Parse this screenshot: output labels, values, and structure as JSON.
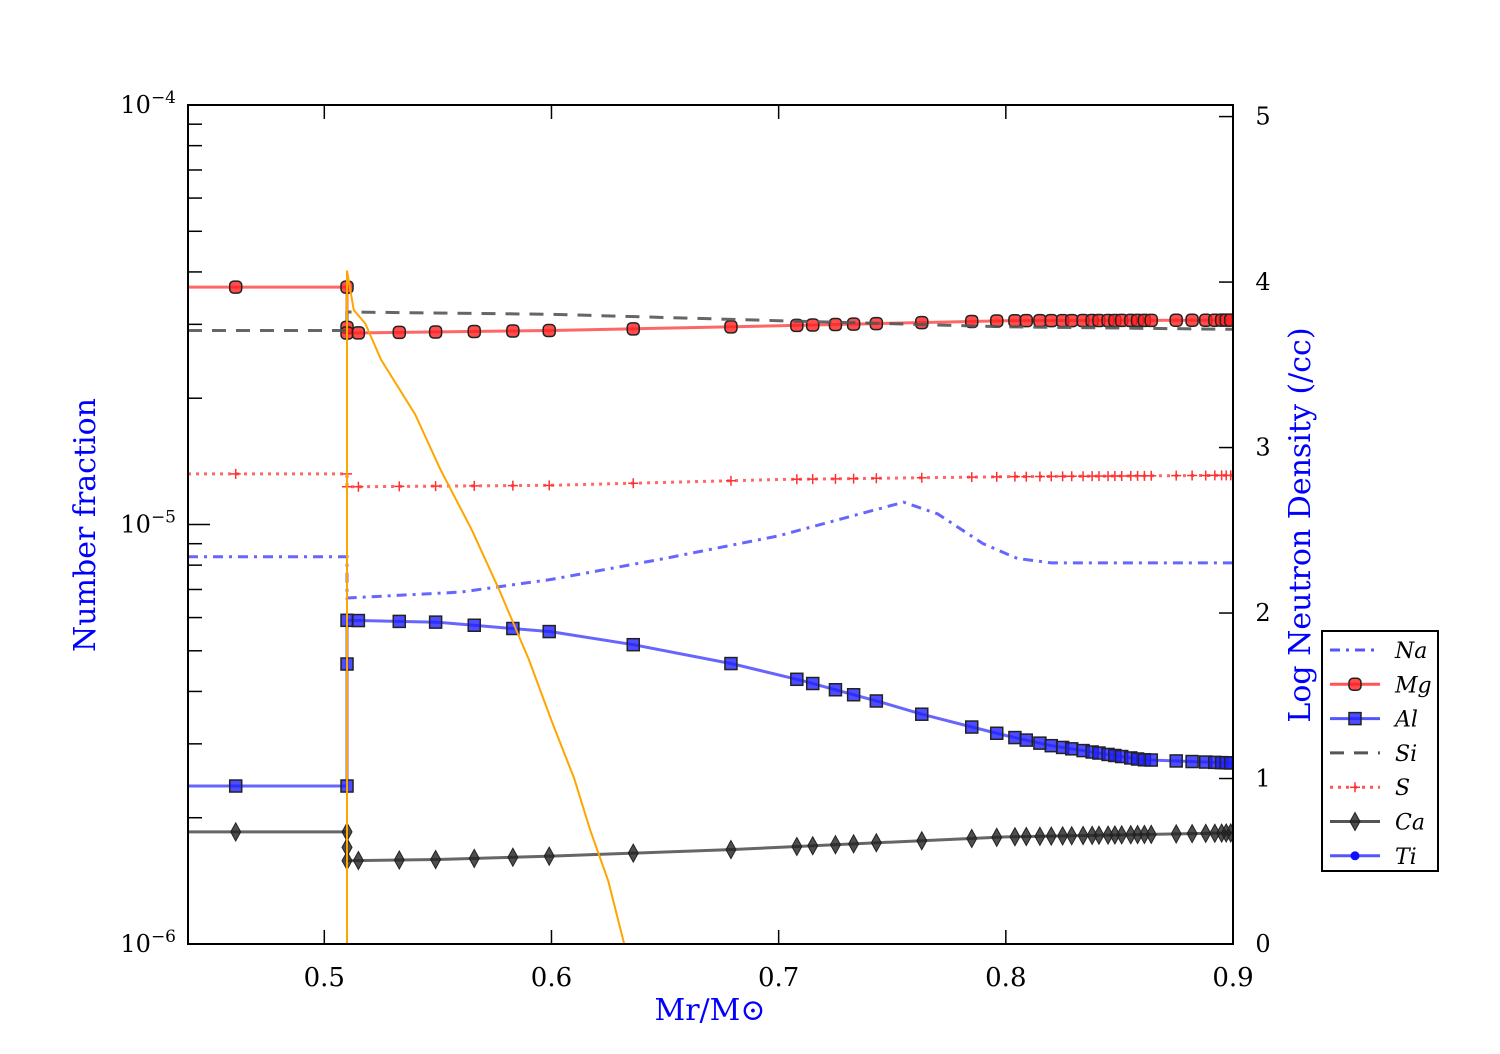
{
  "chart_data": {
    "type": "line",
    "xlabel": "Mr/M⊙",
    "ylabel": "Number fraction",
    "y2label": "Log Neutron Density (/cc)",
    "xlim": [
      0.44,
      0.9
    ],
    "ylim": [
      1e-06,
      0.0001
    ],
    "yscale": "log",
    "y2lim": [
      0,
      5.07
    ],
    "xticks": [
      0.5,
      0.6,
      0.7,
      0.8,
      0.9
    ],
    "xtick_labels": [
      "0.5",
      "0.6",
      "0.7",
      "0.8",
      "0.9"
    ],
    "yticks": [
      {
        "base": "10",
        "exp": "−4",
        "value": 0.0001
      },
      {
        "base": "10",
        "exp": "−5",
        "value": 1e-05
      },
      {
        "base": "10",
        "exp": "−6",
        "value": 1e-06
      }
    ],
    "y2ticks": [
      0,
      1,
      2,
      3,
      4,
      5
    ],
    "y2tick_labels": [
      "0",
      "1",
      "2",
      "3",
      "4",
      "5"
    ],
    "legend_position": "outside-right",
    "marker_x": [
      0.461,
      0.515,
      0.533,
      0.549,
      0.566,
      0.583,
      0.599,
      0.636,
      0.679,
      0.708,
      0.715,
      0.725,
      0.733,
      0.743,
      0.763,
      0.785,
      0.796,
      0.804,
      0.809,
      0.815,
      0.82,
      0.825,
      0.829,
      0.834,
      0.838,
      0.841,
      0.845,
      0.848,
      0.851,
      0.855,
      0.858,
      0.861,
      0.864,
      0.875,
      0.882,
      0.888,
      0.892,
      0.895,
      0.897,
      0.899
    ],
    "series": [
      {
        "name": "Na",
        "color": "#5555ff",
        "dash": "10,6,3,6",
        "marker": "none",
        "points": [
          [
            0.44,
            8.38e-06
          ],
          [
            0.51,
            8.38e-06
          ],
          [
            0.51,
            6.68e-06
          ],
          [
            0.56,
            6.9e-06
          ],
          [
            0.6,
            7.4e-06
          ],
          [
            0.65,
            8.3e-06
          ],
          [
            0.7,
            9.4e-06
          ],
          [
            0.73,
            1.04e-05
          ],
          [
            0.755,
            1.13e-05
          ],
          [
            0.77,
            1.06e-05
          ],
          [
            0.79,
            9e-06
          ],
          [
            0.805,
            8.3e-06
          ],
          [
            0.82,
            8.1e-06
          ],
          [
            0.9,
            8.1e-06
          ]
        ]
      },
      {
        "name": "Mg",
        "color": "#ff5555",
        "dash": "",
        "marker": "circle",
        "marker_fill": "#ff2020",
        "points": [
          [
            0.44,
            3.68e-05
          ],
          [
            0.51,
            3.68e-05
          ],
          [
            0.51,
            2.86e-05
          ],
          [
            0.6,
            2.9e-05
          ],
          [
            0.68,
            2.96e-05
          ],
          [
            0.74,
            3.01e-05
          ],
          [
            0.8,
            3.06e-05
          ],
          [
            0.9,
            3.07e-05
          ]
        ],
        "step_markers": [
          3.68e-05,
          2.95e-05,
          2.86e-05
        ]
      },
      {
        "name": "Al",
        "color": "#5555ff",
        "dash": "",
        "marker": "square",
        "marker_fill": "#2020ff",
        "points": [
          [
            0.44,
            2.38e-06
          ],
          [
            0.51,
            2.38e-06
          ],
          [
            0.51,
            5.91e-06
          ],
          [
            0.55,
            5.85e-06
          ],
          [
            0.6,
            5.55e-06
          ],
          [
            0.636,
            5.17e-06
          ],
          [
            0.68,
            4.65e-06
          ],
          [
            0.71,
            4.25e-06
          ],
          [
            0.745,
            3.77e-06
          ],
          [
            0.763,
            3.53e-06
          ],
          [
            0.785,
            3.29e-06
          ],
          [
            0.8,
            3.14e-06
          ],
          [
            0.82,
            2.97e-06
          ],
          [
            0.86,
            2.75e-06
          ],
          [
            0.9,
            2.7e-06
          ]
        ],
        "step_markers": [
          2.38e-06,
          4.65e-06,
          5.91e-06
        ]
      },
      {
        "name": "Si",
        "color": "#555555",
        "dash": "14,10",
        "marker": "none",
        "points": [
          [
            0.44,
            2.9e-05
          ],
          [
            0.51,
            2.9e-05
          ],
          [
            0.51,
            3.21e-05
          ],
          [
            0.6,
            3.17e-05
          ],
          [
            0.7,
            3.06e-05
          ],
          [
            0.8,
            2.96e-05
          ],
          [
            0.9,
            2.92e-05
          ]
        ]
      },
      {
        "name": "S",
        "color": "#ff5555",
        "dash": "3,5",
        "marker": "plus",
        "points": [
          [
            0.44,
            1.32e-05
          ],
          [
            0.51,
            1.32e-05
          ],
          [
            0.51,
            1.23e-05
          ],
          [
            0.6,
            1.24e-05
          ],
          [
            0.7,
            1.28e-05
          ],
          [
            0.8,
            1.3e-05
          ],
          [
            0.9,
            1.31e-05
          ]
        ],
        "step_markers": [
          1.32e-05,
          1.23e-05
        ]
      },
      {
        "name": "Ca",
        "color": "#555555",
        "dash": "",
        "marker": "diamond",
        "marker_fill": "#222222",
        "points": [
          [
            0.44,
            1.85e-06
          ],
          [
            0.51,
            1.85e-06
          ],
          [
            0.51,
            1.58e-06
          ],
          [
            0.55,
            1.59e-06
          ],
          [
            0.6,
            1.62e-06
          ],
          [
            0.68,
            1.68e-06
          ],
          [
            0.74,
            1.74e-06
          ],
          [
            0.8,
            1.8e-06
          ],
          [
            0.9,
            1.84e-06
          ]
        ],
        "step_markers": [
          1.85e-06,
          1.7e-06,
          1.58e-06
        ]
      },
      {
        "name": "Ti",
        "color": "#5555ff",
        "dash": "",
        "marker": "dot",
        "points": []
      }
    ],
    "neutron_density": {
      "name": "Log Neutron Density",
      "axis": "right",
      "color": "#ffa500",
      "points": [
        [
          0.51,
          0
        ],
        [
          0.51,
          4.07
        ],
        [
          0.513,
          3.83
        ],
        [
          0.518,
          3.75
        ],
        [
          0.525,
          3.53
        ],
        [
          0.54,
          3.2
        ],
        [
          0.551,
          2.87
        ],
        [
          0.565,
          2.5
        ],
        [
          0.577,
          2.14
        ],
        [
          0.59,
          1.72
        ],
        [
          0.6,
          1.35
        ],
        [
          0.61,
          1.0
        ],
        [
          0.617,
          0.69
        ],
        [
          0.625,
          0.38
        ],
        [
          0.632,
          0
        ]
      ]
    }
  }
}
